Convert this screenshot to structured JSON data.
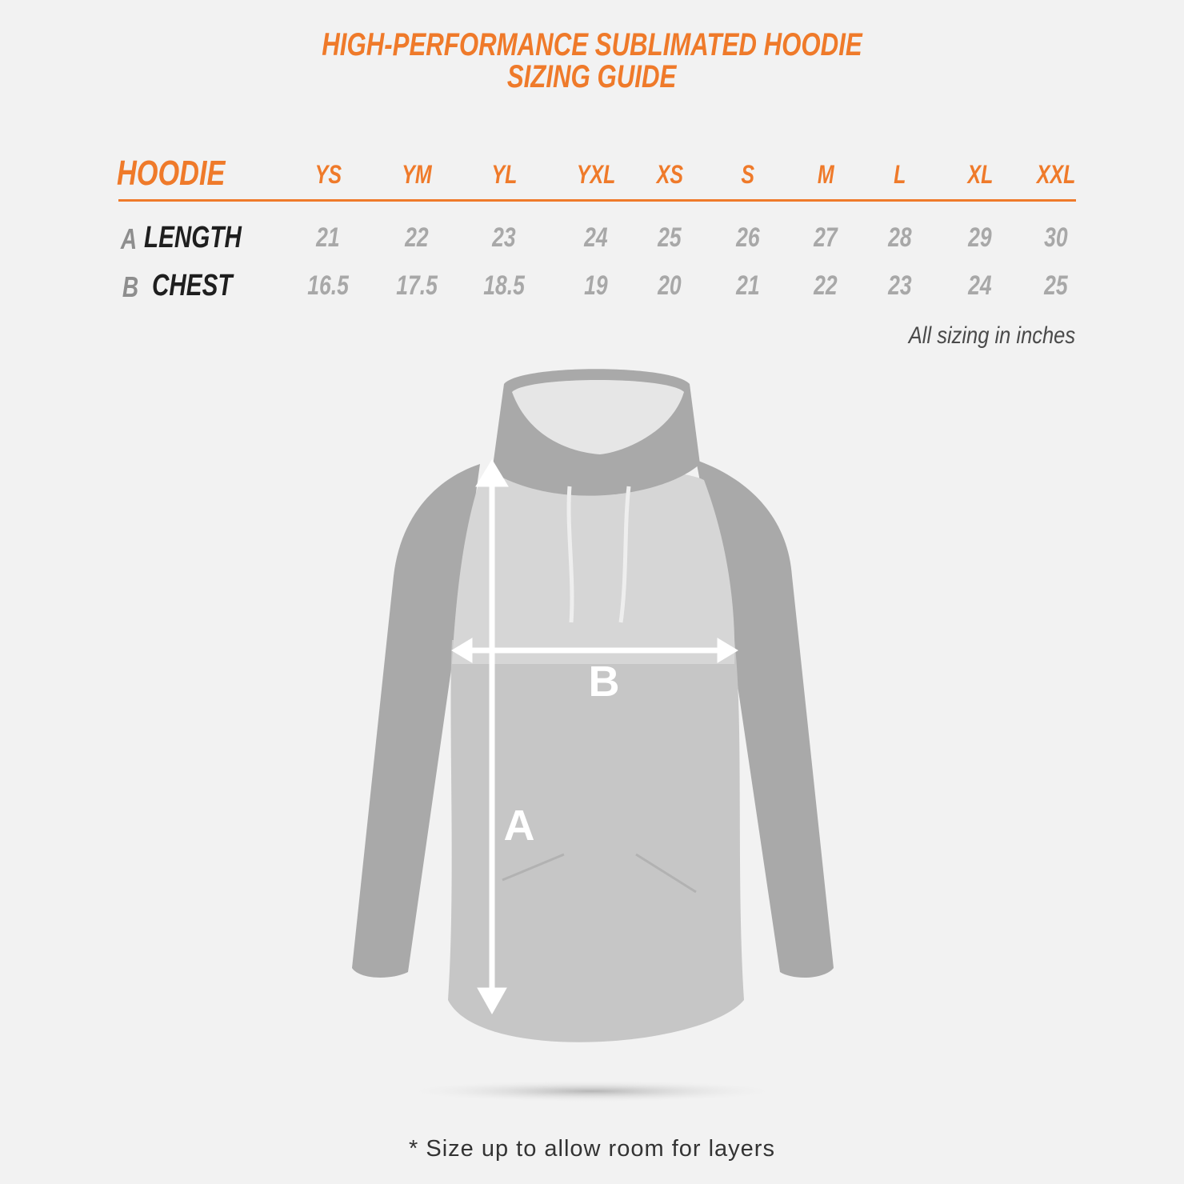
{
  "title": {
    "line1": "HIGH-PERFORMANCE SUBLIMATED HOODIE",
    "line2": "SIZING GUIDE"
  },
  "table": {
    "heading": "HOODIE",
    "sizes": [
      "YS",
      "YM",
      "YL",
      "YXL",
      "XS",
      "S",
      "M",
      "L",
      "XL",
      "XXL"
    ],
    "rows": [
      {
        "letter": "A",
        "name": "LENGTH",
        "values": [
          "21",
          "22",
          "23",
          "24",
          "25",
          "26",
          "27",
          "28",
          "29",
          "30"
        ]
      },
      {
        "letter": "B",
        "name": "CHEST",
        "values": [
          "16.5",
          "17.5",
          "18.5",
          "19",
          "20",
          "21",
          "22",
          "23",
          "24",
          "25"
        ]
      }
    ]
  },
  "units_note": "All sizing in inches",
  "diagram": {
    "label_a": "A",
    "label_b": "B"
  },
  "footnote": "* Size up to allow room for layers",
  "colors": {
    "accent": "#ef7a2a",
    "values": "#a8a8a8",
    "background": "#f2f2f2"
  }
}
